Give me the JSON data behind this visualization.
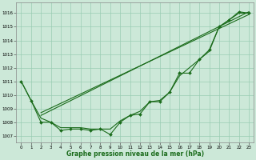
{
  "x": [
    0,
    1,
    2,
    3,
    4,
    5,
    6,
    7,
    8,
    9,
    10,
    11,
    12,
    13,
    14,
    15,
    16,
    17,
    18,
    19,
    20,
    21,
    22,
    23
  ],
  "pressure_main": [
    1011,
    1009.6,
    1008,
    1008,
    1007.4,
    1007.5,
    1007.5,
    1007.4,
    1007.5,
    1007.1,
    1008.0,
    1008.5,
    1008.6,
    1009.5,
    1009.5,
    1010.2,
    1011.6,
    1011.6,
    1012.6,
    1013.3,
    1015.0,
    1015.5,
    1016.1,
    1016.0
  ],
  "pressure_smooth": [
    1011,
    1009.6,
    1008.3,
    1008,
    1007.6,
    1007.6,
    1007.6,
    1007.5,
    1007.5,
    1007.5,
    1008.1,
    1008.5,
    1008.8,
    1009.5,
    1009.6,
    1010.2,
    1011.4,
    1012.0,
    1012.6,
    1013.2,
    1015.0,
    1015.5,
    1016.0,
    1016.0
  ],
  "trend_line_x": [
    2,
    23
  ],
  "trend_line_y": [
    1008.5,
    1016.1
  ],
  "trend_line2_x": [
    2,
    23
  ],
  "trend_line2_y": [
    1008.7,
    1015.9
  ],
  "ylim": [
    1006.5,
    1016.8
  ],
  "xlim": [
    -0.5,
    23.5
  ],
  "yticks": [
    1007,
    1008,
    1009,
    1010,
    1011,
    1012,
    1013,
    1014,
    1015,
    1016
  ],
  "xticks": [
    0,
    1,
    2,
    3,
    4,
    5,
    6,
    7,
    8,
    9,
    10,
    11,
    12,
    13,
    14,
    15,
    16,
    17,
    18,
    19,
    20,
    21,
    22,
    23
  ],
  "xlabel": "Graphe pression niveau de la mer (hPa)",
  "line_color": "#1a6b1a",
  "bg_color": "#cce8d8",
  "grid_color": "#99ccb3",
  "marker": "D",
  "marker_size": 2.0,
  "linewidth": 0.8
}
